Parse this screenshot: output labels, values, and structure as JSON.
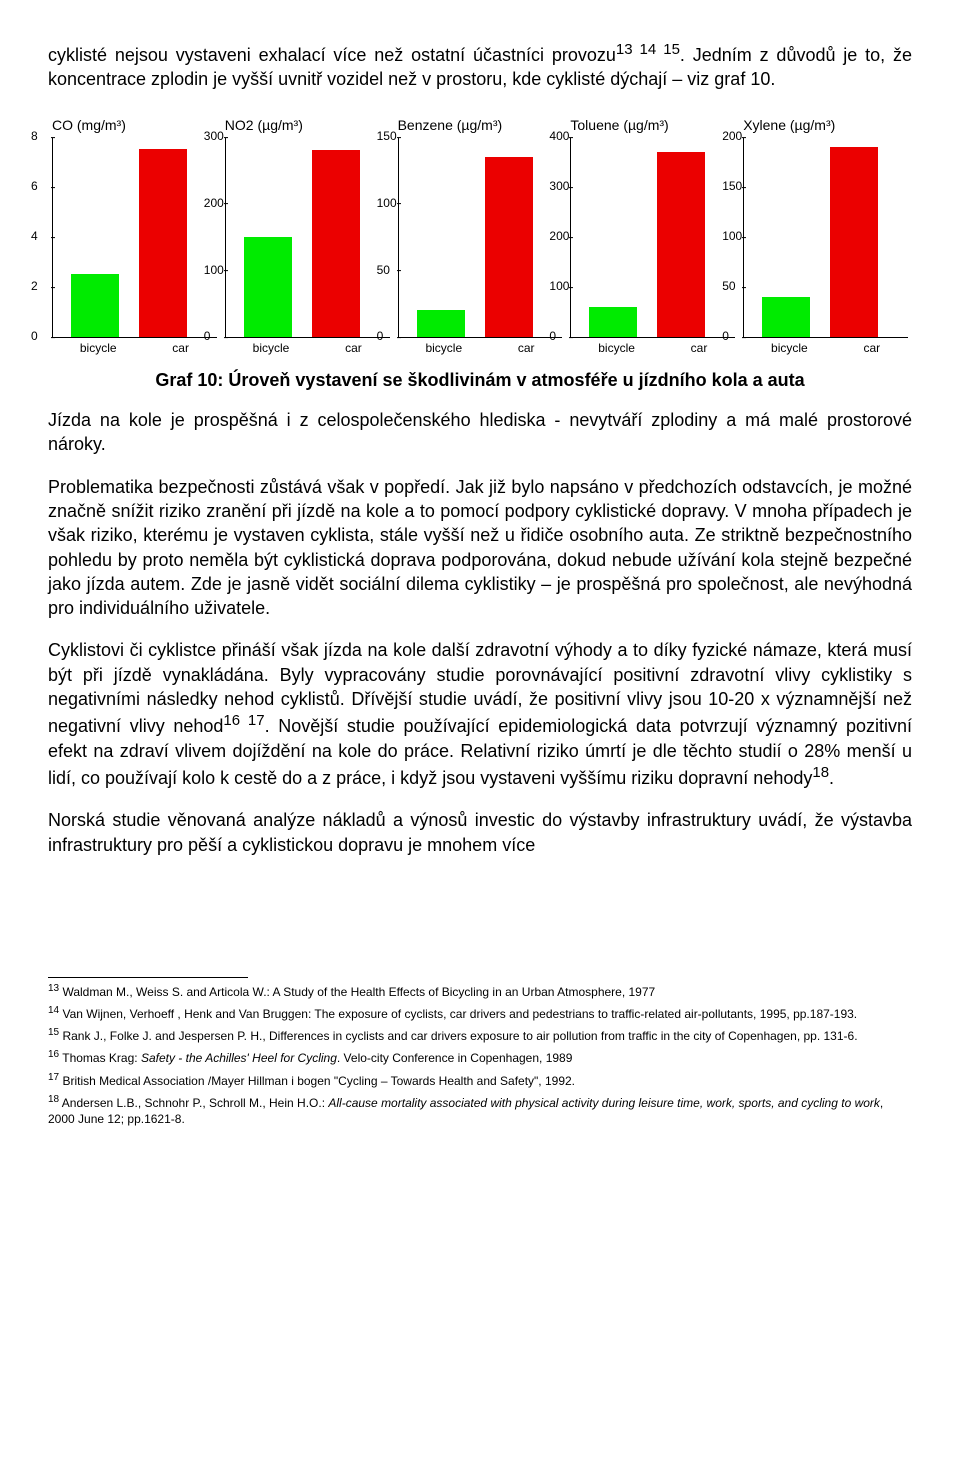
{
  "para1_pre": "cyklisté nejsou vystaveni exhalací více než ostatní účastníci provozu",
  "para1_sup": "13 14 15",
  "para1_post": ". Jedním z důvodů je to, že koncentrace zplodin je vyšší uvnitř vozidel než v prostoru, kde cyklisté dýchají – viz graf 10.",
  "caption": "Graf 10: Úroveň vystavení se škodlivinám v atmosféře u jízdního kola a auta",
  "para2": "Jízda na kole je prospěšná i z celospolečenského hlediska - nevytváří zplodiny a má malé prostorové nároky.",
  "para3": "Problematika bezpečnosti zůstává však v popředí. Jak již bylo napsáno v předchozích odstavcích, je možné značně snížit riziko zranění při jízdě na kole a to pomocí podpory cyklistické dopravy. V mnoha případech je však riziko, kterému je vystaven cyklista, stále vyšší než u řidiče osobního auta. Ze striktně bezpečnostního pohledu by proto neměla být cyklistická doprava podporována, dokud nebude užívání kola stejně bezpečné jako jízda autem. Zde je jasně vidět sociální dilema cyklistiky – je prospěšná pro společnost, ale nevýhodná pro individuálního uživatele.",
  "para4_a": "Cyklistovi či cyklistce přináší však jízda na kole další zdravotní výhody a to díky fyzické námaze, která musí být při jízdě vynakládána. Byly vypracovány studie porovnávající positivní zdravotní vlivy cyklistiky s negativními následky nehod cyklistů. Dřívější studie uvádí, že positivní vlivy jsou 10-20 x významnější než negativní vlivy nehod",
  "para4_sup1": "16 17",
  "para4_b": ". Novější studie používající epidemiologická data potvrzují významný pozitivní efekt na zdraví vlivem dojíždění na kole do práce. Relativní riziko úmrtí je dle těchto studií o 28% menší u lidí, co používají kolo k cestě do a z práce, i když jsou vystaveni vyššímu riziku dopravní nehody",
  "para4_sup2": "18",
  "para4_c": ".",
  "para5": "Norská studie věnovaná analýze nákladů a výnosů investic do výstavby infrastruktury uvádí, že výstavba infrastruktury pro pěší a cyklistickou dopravu je mnohem více",
  "charts": [
    {
      "title": "CO (mg/m³)",
      "ymax": 8,
      "ticks": [
        0,
        2,
        4,
        6,
        8
      ],
      "bicycle": 2.5,
      "car": 7.5
    },
    {
      "title": "NO2 (µg/m³)",
      "ymax": 300,
      "ticks": [
        0,
        100,
        200,
        300
      ],
      "bicycle": 150,
      "car": 280
    },
    {
      "title": "Benzene (µg/m³)",
      "ymax": 150,
      "ticks": [
        0,
        50,
        100,
        150
      ],
      "bicycle": 20,
      "car": 135
    },
    {
      "title": "Toluene (µg/m³)",
      "ymax": 400,
      "ticks": [
        0,
        100,
        200,
        300,
        400
      ],
      "bicycle": 60,
      "car": 370
    },
    {
      "title": "Xylene (µg/m³)",
      "ymax": 200,
      "ticks": [
        0,
        50,
        100,
        150,
        200
      ],
      "bicycle": 40,
      "car": 190
    }
  ],
  "xlabels": [
    "bicycle",
    "car"
  ],
  "colors": {
    "bicycle": "#00eb00",
    "car": "#eb0000"
  },
  "footnotes": [
    {
      "n": "13",
      "text": " Waldman M., Weiss S. and Articola W.: A Study of the Health Effects of Bicycling in an Urban Atmosphere, 1977"
    },
    {
      "n": "14",
      "text": " Van Wijnen, Verhoeff , Henk and Van Bruggen: The exposure of cyclists, car drivers and pedestrians to traffic-related air-pollutants, 1995, pp.187-193."
    },
    {
      "n": "15",
      "text": " Rank J., Folke J. and Jespersen P. H., Differences in cyclists and car drivers exposure to air pollution from traffic in the city of Copenhagen, pp. 131-6."
    },
    {
      "n": "16",
      "text": " Thomas Krag: Safety - the Achilles' Heel for Cycling. Velo-city Conference in Copenhagen, 1989",
      "italic": "Safety - the Achilles' Heel for Cycling"
    },
    {
      "n": "17",
      "text": " British Medical Association /Mayer Hillman i bogen \"Cycling – Towards Health and Safety\", 1992."
    },
    {
      "n": "18",
      "text": " Andersen L.B., Schnohr P., Schroll M., Hein H.O.: All-cause mortality associated with physical activity during leisure time, work, sports, and cycling to work, 2000 June 12; pp.1621-8.",
      "italic": "All-cause mortality associated with physical activity during leisure time, work, sports, and cycling to work"
    }
  ]
}
